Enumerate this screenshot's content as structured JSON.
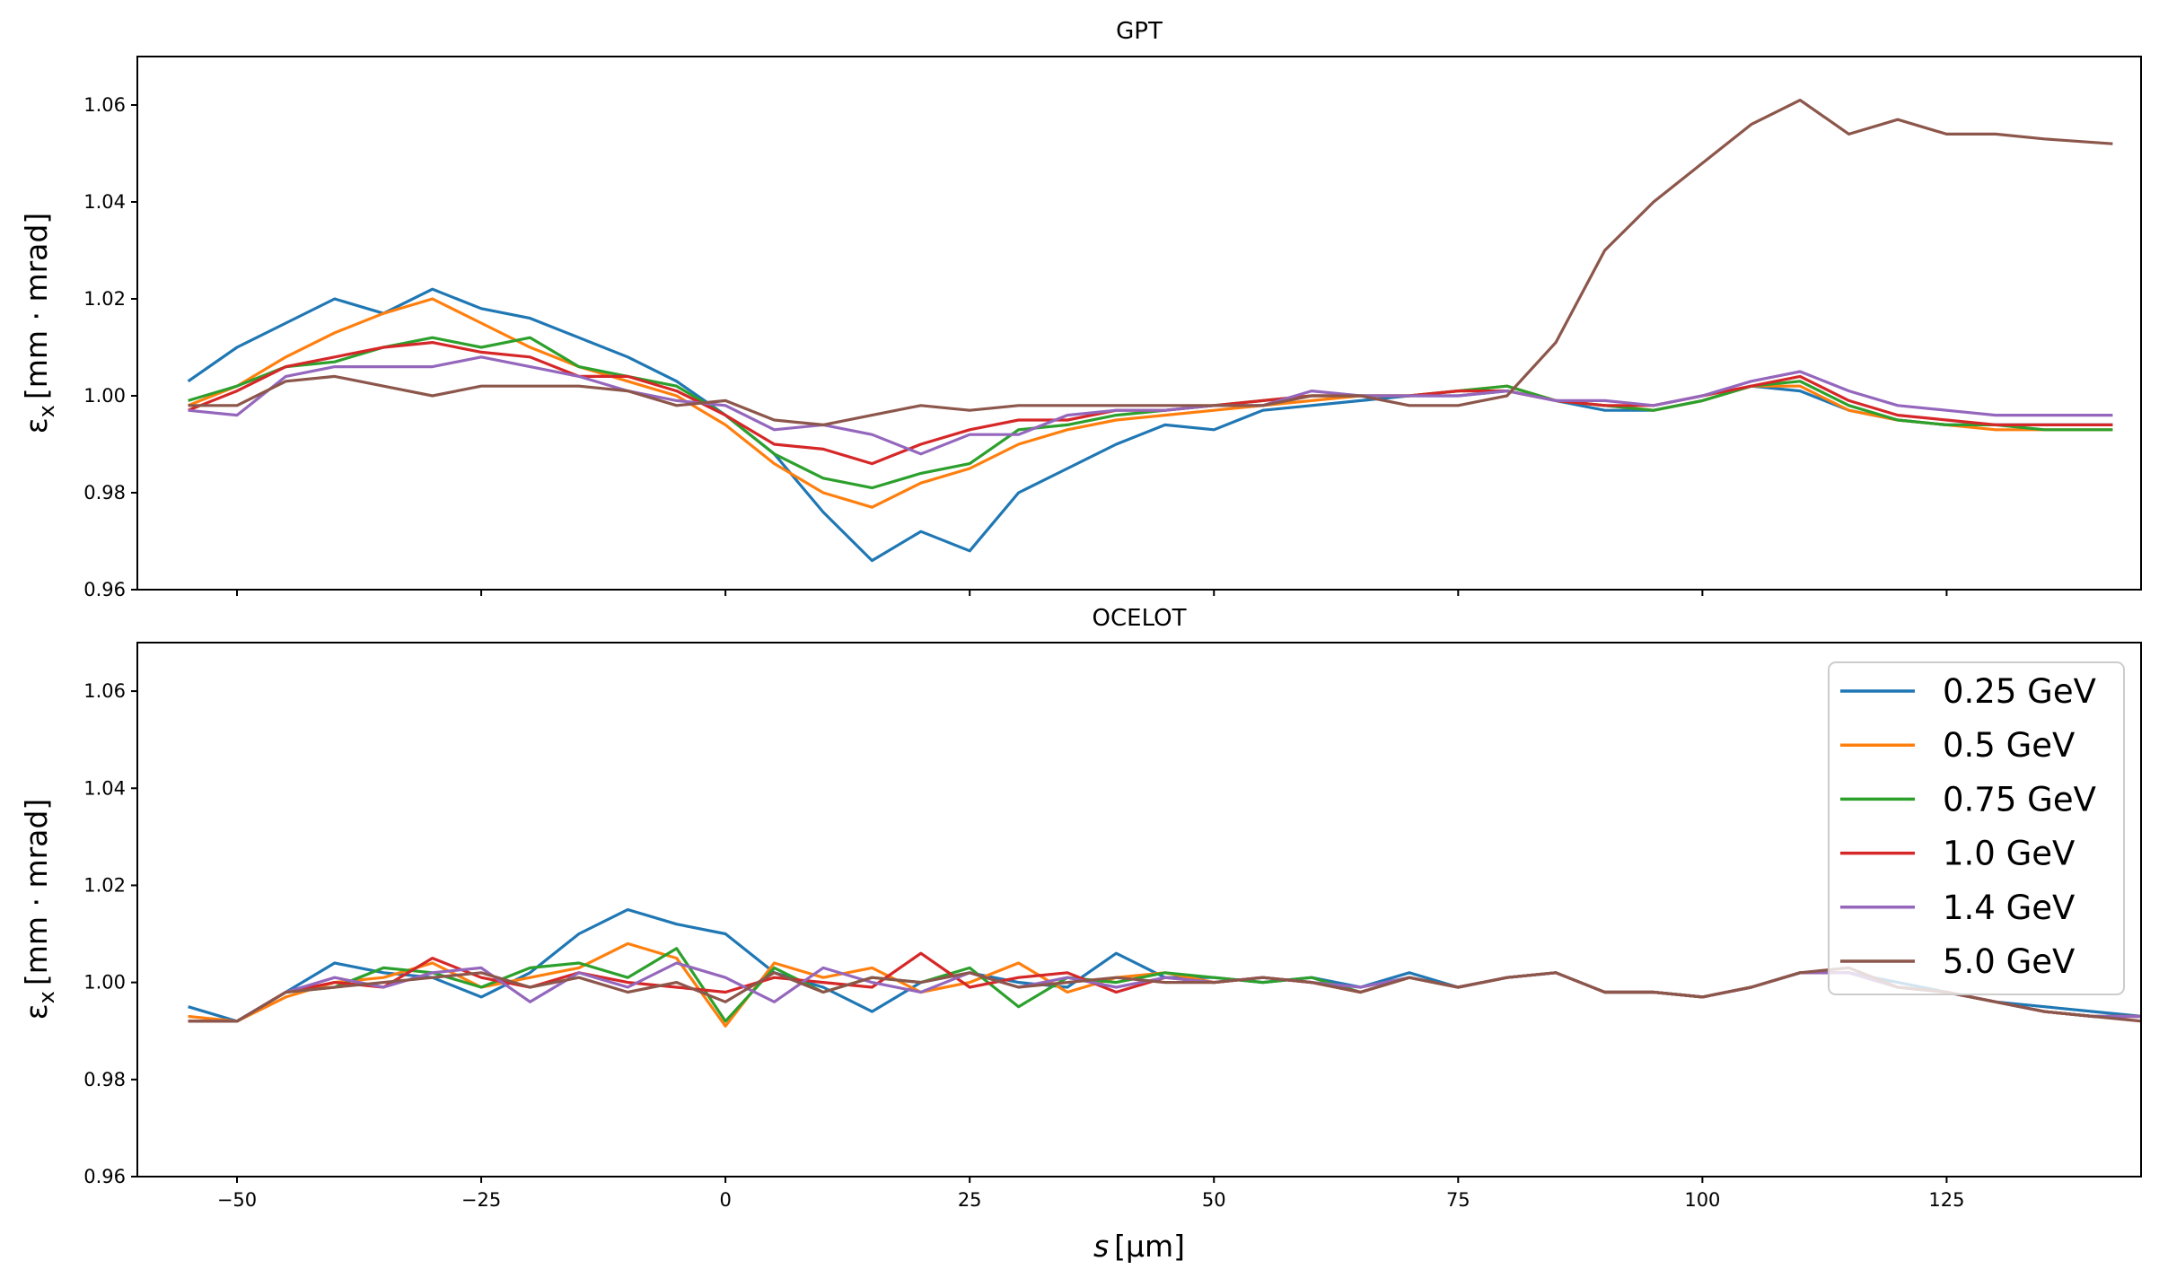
{
  "chart_data": [
    {
      "type": "line",
      "title": "GPT",
      "ylabel_symbol": "ε",
      "ylabel_sub": "x",
      "ylabel_unit": "[mm · mrad]",
      "xlim": [
        -60.2,
        144.9
      ],
      "ylim": [
        0.96,
        1.07
      ],
      "xticks": [
        -50,
        -25,
        0,
        25,
        50,
        75,
        100,
        125
      ],
      "show_xtick_labels": false,
      "yticks": [
        "0.96",
        "0.98",
        "1.00",
        "1.02",
        "1.04",
        "1.06"
      ],
      "grid": false,
      "x": [
        -55,
        -50,
        -45,
        -40,
        -35,
        -30,
        -25,
        -20,
        -15,
        -10,
        -5,
        0,
        5,
        10,
        15,
        20,
        25,
        30,
        35,
        40,
        45,
        50,
        55,
        60,
        65,
        70,
        75,
        80,
        85,
        90,
        95,
        100,
        105,
        110,
        115,
        120,
        125,
        130,
        135,
        142
      ],
      "series": [
        {
          "name": "0.25 GeV",
          "color": "#1f77b4",
          "values": [
            1.003,
            1.01,
            1.015,
            1.02,
            1.017,
            1.022,
            1.018,
            1.016,
            1.012,
            1.008,
            1.003,
            0.996,
            0.988,
            0.976,
            0.966,
            0.972,
            0.968,
            0.98,
            0.985,
            0.99,
            0.994,
            0.993,
            0.997,
            0.998,
            0.999,
            1.0,
            1.0,
            1.001,
            0.999,
            0.997,
            0.997,
            0.999,
            1.002,
            1.001,
            0.997,
            0.995,
            0.994,
            0.994,
            0.994,
            0.994
          ]
        },
        {
          "name": "0.5 GeV",
          "color": "#ff7f0e",
          "values": [
            0.998,
            1.002,
            1.008,
            1.013,
            1.017,
            1.02,
            1.015,
            1.01,
            1.006,
            1.003,
            1.0,
            0.994,
            0.986,
            0.98,
            0.977,
            0.982,
            0.985,
            0.99,
            0.993,
            0.995,
            0.996,
            0.997,
            0.998,
            0.999,
            1.0,
            1.0,
            1.001,
            1.002,
            0.999,
            0.998,
            0.997,
            0.999,
            1.002,
            1.002,
            0.997,
            0.995,
            0.994,
            0.993,
            0.993,
            0.993
          ]
        },
        {
          "name": "0.75 GeV",
          "color": "#2ca02c",
          "values": [
            0.999,
            1.002,
            1.006,
            1.007,
            1.01,
            1.012,
            1.01,
            1.012,
            1.006,
            1.004,
            1.002,
            0.996,
            0.988,
            0.983,
            0.981,
            0.984,
            0.986,
            0.993,
            0.994,
            0.996,
            0.997,
            0.998,
            0.999,
            1.0,
            1.0,
            1.0,
            1.001,
            1.002,
            0.999,
            0.998,
            0.997,
            0.999,
            1.002,
            1.003,
            0.998,
            0.995,
            0.994,
            0.994,
            0.993,
            0.993
          ]
        },
        {
          "name": "1.0 GeV",
          "color": "#d62728",
          "values": [
            0.997,
            1.001,
            1.006,
            1.008,
            1.01,
            1.011,
            1.009,
            1.008,
            1.004,
            1.004,
            1.001,
            0.996,
            0.99,
            0.989,
            0.986,
            0.99,
            0.993,
            0.995,
            0.995,
            0.997,
            0.997,
            0.998,
            0.999,
            1.0,
            1.0,
            1.0,
            1.001,
            1.001,
            0.999,
            0.998,
            0.998,
            1.0,
            1.002,
            1.004,
            0.999,
            0.996,
            0.995,
            0.994,
            0.994,
            0.994
          ]
        },
        {
          "name": "1.4 GeV",
          "color": "#9467bd",
          "values": [
            0.997,
            0.996,
            1.004,
            1.006,
            1.006,
            1.006,
            1.008,
            1.006,
            1.004,
            1.001,
            0.999,
            0.998,
            0.993,
            0.994,
            0.992,
            0.988,
            0.992,
            0.992,
            0.996,
            0.997,
            0.997,
            0.998,
            0.998,
            1.001,
            1.0,
            1.0,
            1.0,
            1.001,
            0.999,
            0.999,
            0.998,
            1.0,
            1.003,
            1.005,
            1.001,
            0.998,
            0.997,
            0.996,
            0.996,
            0.996
          ]
        },
        {
          "name": "5.0 GeV",
          "color": "#8c564b",
          "values": [
            0.998,
            0.998,
            1.003,
            1.004,
            1.002,
            1.0,
            1.002,
            1.002,
            1.002,
            1.001,
            0.998,
            0.999,
            0.995,
            0.994,
            0.996,
            0.998,
            0.997,
            0.998,
            0.998,
            0.998,
            0.998,
            0.998,
            0.998,
            1.0,
            1.0,
            0.998,
            0.998,
            1.0,
            1.011,
            1.03,
            1.04,
            1.048,
            1.056,
            1.061,
            1.054,
            1.057,
            1.054,
            1.054,
            1.053,
            1.052
          ]
        }
      ]
    },
    {
      "type": "line",
      "title": "OCELOT",
      "ylabel_symbol": "ε",
      "ylabel_sub": "x",
      "ylabel_unit": "[mm · mrad]",
      "xlabel_symbol": "s",
      "xlabel_unit": "[μm]",
      "xlim": [
        -60.2,
        144.9
      ],
      "ylim": [
        0.96,
        1.07
      ],
      "xticks": [
        -50,
        -25,
        0,
        25,
        50,
        75,
        100,
        125
      ],
      "show_xtick_labels": true,
      "yticks": [
        "0.96",
        "0.98",
        "1.00",
        "1.02",
        "1.04",
        "1.06"
      ],
      "grid": false,
      "legend": "upper-right",
      "x": [
        -55,
        -50,
        -45,
        -40,
        -35,
        -30,
        -25,
        -20,
        -15,
        -10,
        -5,
        0,
        5,
        10,
        15,
        20,
        25,
        30,
        35,
        40,
        45,
        50,
        55,
        60,
        65,
        70,
        75,
        80,
        85,
        90,
        95,
        100,
        105,
        110,
        115,
        120,
        125,
        130,
        135,
        140,
        145
      ],
      "series": [
        {
          "name": "0.25 GeV",
          "color": "#1f77b4",
          "values": [
            0.995,
            0.992,
            0.998,
            1.004,
            1.002,
            1.001,
            0.997,
            1.002,
            1.01,
            1.015,
            1.012,
            1.01,
            1.002,
            0.999,
            0.994,
            1.0,
            1.002,
            1.0,
            0.999,
            1.006,
            1.001,
            1.001,
            1.0,
            1.001,
            0.999,
            1.002,
            0.999,
            1.001,
            1.002,
            0.998,
            0.998,
            0.997,
            0.999,
            1.002,
            1.002,
            1.0,
            0.998,
            0.996,
            0.995,
            0.994,
            0.993
          ]
        },
        {
          "name": "0.5 GeV",
          "color": "#ff7f0e",
          "values": [
            0.993,
            0.992,
            0.997,
            1.0,
            1.001,
            1.004,
            0.999,
            1.001,
            1.003,
            1.008,
            1.005,
            0.991,
            1.004,
            1.001,
            1.003,
            0.998,
            1.0,
            1.004,
            0.998,
            1.001,
            1.002,
            1.0,
            1.001,
            1.0,
            0.998,
            1.001,
            0.999,
            1.001,
            1.002,
            0.998,
            0.998,
            0.997,
            0.999,
            1.002,
            1.002,
            0.999,
            0.998,
            0.996,
            0.994,
            0.993,
            0.993
          ]
        },
        {
          "name": "0.75 GeV",
          "color": "#2ca02c",
          "values": [
            0.992,
            0.992,
            0.998,
            0.999,
            1.003,
            1.002,
            0.999,
            1.003,
            1.004,
            1.001,
            1.007,
            0.992,
            1.003,
            0.998,
            1.001,
            1.0,
            1.003,
            0.995,
            1.001,
            1.0,
            1.002,
            1.001,
            1.0,
            1.001,
            0.998,
            1.001,
            0.999,
            1.001,
            1.002,
            0.998,
            0.998,
            0.997,
            0.999,
            1.002,
            1.002,
            0.999,
            0.998,
            0.996,
            0.994,
            0.993,
            0.993
          ]
        },
        {
          "name": "1.0 GeV",
          "color": "#d62728",
          "values": [
            0.992,
            0.992,
            0.998,
            1.0,
            0.999,
            1.005,
            1.001,
            0.999,
            1.002,
            1.0,
            0.999,
            0.998,
            1.001,
            1.0,
            0.999,
            1.006,
            0.999,
            1.001,
            1.002,
            0.998,
            1.001,
            1.0,
            1.001,
            1.0,
            0.998,
            1.001,
            0.999,
            1.001,
            1.002,
            0.998,
            0.998,
            0.997,
            0.999,
            1.002,
            1.002,
            0.999,
            0.998,
            0.996,
            0.994,
            0.993,
            0.993
          ]
        },
        {
          "name": "1.4 GeV",
          "color": "#9467bd",
          "values": [
            0.992,
            0.992,
            0.998,
            1.001,
            0.999,
            1.002,
            1.003,
            0.996,
            1.002,
            0.999,
            1.004,
            1.001,
            0.996,
            1.003,
            1.0,
            0.998,
            1.002,
            0.999,
            1.001,
            0.999,
            1.001,
            1.0,
            1.001,
            1.0,
            0.999,
            1.001,
            0.999,
            1.001,
            1.002,
            0.998,
            0.998,
            0.997,
            0.999,
            1.002,
            1.002,
            0.999,
            0.998,
            0.996,
            0.994,
            0.993,
            0.993
          ]
        },
        {
          "name": "5.0 GeV",
          "color": "#8c564b",
          "values": [
            0.992,
            0.992,
            0.998,
            0.999,
            1.0,
            1.001,
            1.002,
            0.999,
            1.001,
            0.998,
            1.0,
            0.996,
            1.002,
            0.998,
            1.001,
            1.0,
            1.002,
            0.999,
            1.0,
            1.001,
            1.0,
            1.0,
            1.001,
            1.0,
            0.998,
            1.001,
            0.999,
            1.001,
            1.002,
            0.998,
            0.998,
            0.997,
            0.999,
            1.002,
            1.003,
            0.999,
            0.998,
            0.996,
            0.994,
            0.993,
            0.992
          ]
        }
      ]
    }
  ]
}
